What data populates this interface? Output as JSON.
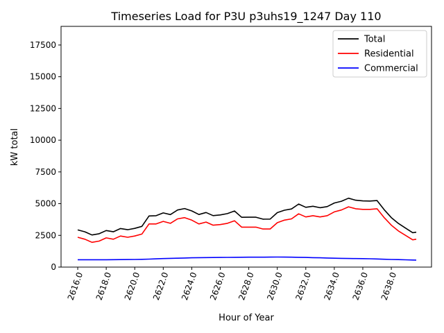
{
  "chart_data": {
    "type": "line",
    "title": "Timeseries Load for P3U p3uhs19_1247  Day 110",
    "xlabel": "Hour of Year",
    "ylabel": "kW total",
    "xlim": [
      2614.83,
      2640.82
    ],
    "ylim": [
      0,
      18970
    ],
    "xticks": [
      2616,
      2618,
      2620,
      2622,
      2624,
      2626,
      2628,
      2630,
      2632,
      2634,
      2636,
      2638
    ],
    "xtick_labels": [
      "2616.0",
      "2618.0",
      "2620.0",
      "2622.0",
      "2624.0",
      "2626.0",
      "2628.0",
      "2630.0",
      "2632.0",
      "2634.0",
      "2636.0",
      "2638.0"
    ],
    "yticks": [
      0,
      2500,
      5000,
      7500,
      10000,
      12500,
      15000,
      17500
    ],
    "ytick_labels": [
      "0",
      "2500",
      "5000",
      "7500",
      "10000",
      "12500",
      "15000",
      "17500"
    ],
    "legend_position": "top-right",
    "grid": false,
    "x": [
      2616,
      2616.5,
      2617,
      2617.5,
      2618,
      2618.5,
      2619,
      2619.5,
      2620,
      2620.5,
      2621,
      2621.5,
      2622,
      2622.5,
      2623,
      2623.5,
      2624,
      2624.5,
      2625,
      2625.5,
      2626,
      2626.5,
      2627,
      2627.5,
      2628,
      2628.5,
      2629,
      2629.5,
      2630,
      2630.5,
      2631,
      2631.5,
      2632,
      2632.5,
      2633,
      2633.5,
      2634,
      2634.5,
      2635,
      2635.5,
      2636,
      2636.5,
      2637,
      2637.5,
      2638,
      2638.5,
      2639,
      2639.5,
      2639.75
    ],
    "series": [
      {
        "name": "Total",
        "color": "#000000",
        "values": [
          2930,
          2780,
          2530,
          2630,
          2880,
          2785,
          3040,
          2945,
          3050,
          3210,
          4030,
          4050,
          4270,
          4140,
          4500,
          4615,
          4430,
          4145,
          4300,
          4055,
          4110,
          4215,
          4420,
          3925,
          3930,
          3930,
          3780,
          3785,
          4290,
          4485,
          4580,
          4970,
          4710,
          4795,
          4680,
          4765,
          5050,
          5190,
          5430,
          5270,
          5215,
          5205,
          5240,
          4520,
          3900,
          3440,
          3075,
          2710,
          2750
        ]
      },
      {
        "name": "Residential",
        "color": "#ff0000",
        "values": [
          2350,
          2200,
          1950,
          2050,
          2300,
          2200,
          2450,
          2350,
          2450,
          2600,
          3400,
          3400,
          3600,
          3450,
          3800,
          3900,
          3700,
          3400,
          3550,
          3300,
          3350,
          3450,
          3650,
          3150,
          3150,
          3150,
          3000,
          3000,
          3500,
          3700,
          3800,
          4200,
          3950,
          4050,
          3950,
          4050,
          4350,
          4500,
          4750,
          4600,
          4550,
          4550,
          4600,
          3900,
          3300,
          2850,
          2500,
          2150,
          2200
        ]
      },
      {
        "name": "Commercial",
        "color": "#0000ff",
        "values": [
          580,
          580,
          580,
          580,
          580,
          585,
          590,
          595,
          600,
          610,
          630,
          650,
          670,
          690,
          700,
          715,
          730,
          745,
          750,
          755,
          760,
          765,
          770,
          775,
          780,
          780,
          780,
          785,
          790,
          785,
          780,
          770,
          760,
          745,
          730,
          715,
          700,
          690,
          680,
          670,
          665,
          655,
          640,
          620,
          600,
          590,
          575,
          560,
          550
        ]
      }
    ]
  }
}
